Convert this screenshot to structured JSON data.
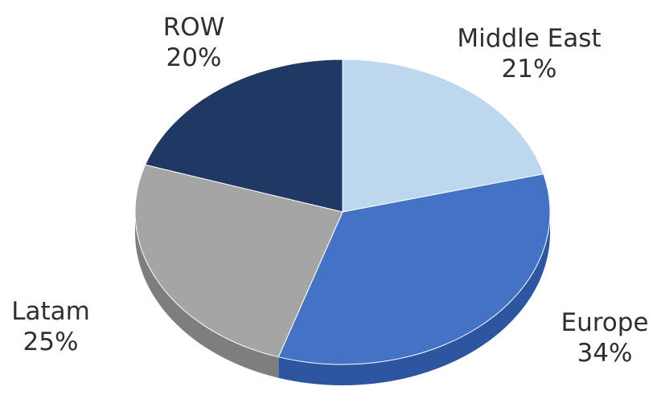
{
  "chart_data": {
    "type": "pie",
    "title": "",
    "slices": [
      {
        "label": "Middle East",
        "percent_text": "21%",
        "value": 21,
        "color": "#bdd7ee",
        "side": "#9ebbd8"
      },
      {
        "label": "Europe",
        "percent_text": "34%",
        "value": 34,
        "color": "#4472c4",
        "side": "#2e56a0"
      },
      {
        "label": "Latam",
        "percent_text": "25%",
        "value": 25,
        "color": "#a5a5a5",
        "side": "#7e7e7e"
      },
      {
        "label": "ROW",
        "percent_text": "20%",
        "value": 20,
        "color": "#1f3864",
        "side": "#15284a"
      }
    ],
    "legend": "none",
    "style": "3d-pie"
  }
}
